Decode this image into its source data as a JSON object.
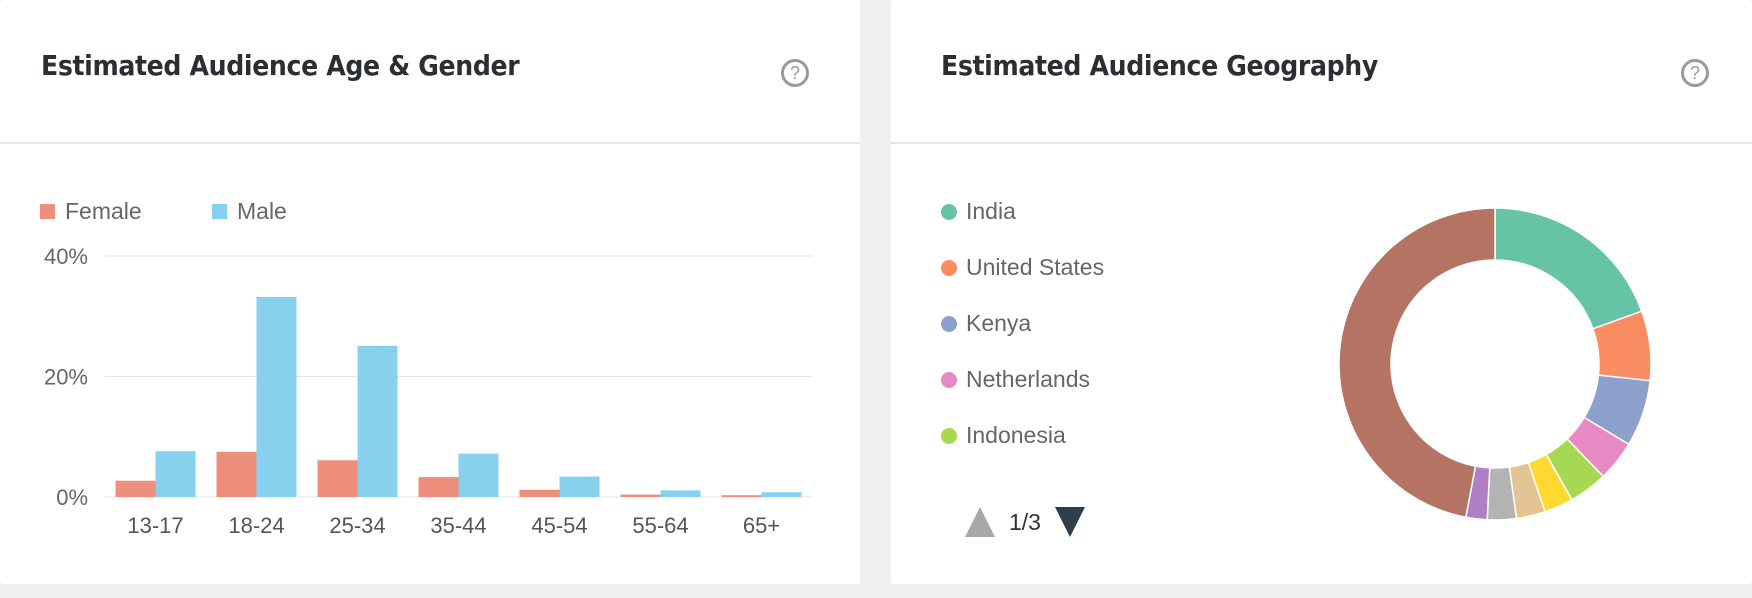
{
  "age_gender": {
    "title": "Estimated Audience Age & Gender",
    "help_glyph": "?"
  },
  "geography": {
    "title": "Estimated Audience Geography",
    "help_glyph": "?",
    "pager": {
      "label": "1/3",
      "up_color": "#a8a8a8",
      "down_color": "#2f3e4c"
    }
  },
  "chart_data": [
    {
      "type": "bar",
      "categories": [
        "13-17",
        "18-24",
        "25-34",
        "35-44",
        "45-54",
        "55-64",
        "65+"
      ],
      "series": [
        {
          "name": "Female",
          "color": "#ee8f7d",
          "values": [
            2.7,
            7.5,
            6.1,
            3.3,
            1.2,
            0.4,
            0.3
          ]
        },
        {
          "name": "Male",
          "color": "#87d1ef",
          "values": [
            7.6,
            33.2,
            25.1,
            7.2,
            3.4,
            1.1,
            0.8
          ]
        }
      ],
      "yticks": [
        "0%",
        "20%",
        "40%"
      ],
      "ylim": [
        0,
        40
      ],
      "grid": true,
      "legend": "top-left"
    },
    {
      "type": "pie",
      "donut": true,
      "legend": "left",
      "legend_entries": [
        {
          "name": "India",
          "color": "#66c3a5"
        },
        {
          "name": "United States",
          "color": "#fc8c62"
        },
        {
          "name": "Kenya",
          "color": "#8da0cb"
        },
        {
          "name": "Netherlands",
          "color": "#e78ac4"
        },
        {
          "name": "Indonesia",
          "color": "#a7d854"
        }
      ],
      "slices": [
        {
          "name": "India",
          "value": 19.5,
          "color": "#66c3a5"
        },
        {
          "name": "United States",
          "value": 7.2,
          "color": "#fc8c62"
        },
        {
          "name": "Kenya",
          "value": 6.9,
          "color": "#8da0cb"
        },
        {
          "name": "Netherlands",
          "value": 4.2,
          "color": "#e78ac4"
        },
        {
          "name": "Indonesia",
          "value": 4.0,
          "color": "#a7d854"
        },
        {
          "value": 3.0,
          "color": "#ffd92f"
        },
        {
          "value": 3.0,
          "color": "#e5c494"
        },
        {
          "value": 3.0,
          "color": "#b3b3b3"
        },
        {
          "value": 2.2,
          "color": "#b07fc4"
        },
        {
          "value": 47.0,
          "color": "#b47363"
        }
      ]
    }
  ]
}
